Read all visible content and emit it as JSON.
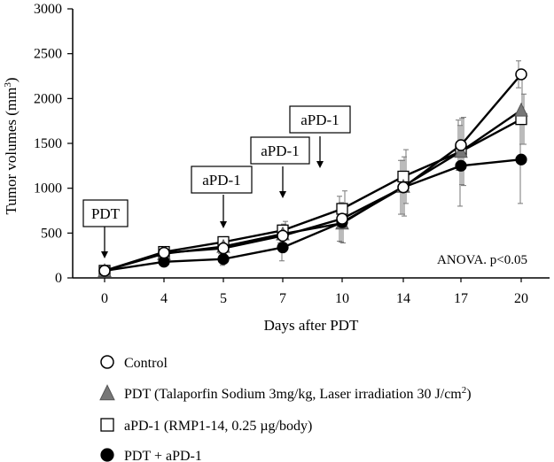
{
  "chart_data": {
    "type": "line",
    "x": [
      0,
      4,
      5,
      7,
      10,
      14,
      17,
      20
    ],
    "x_tick_labels": [
      "0",
      "4",
      "5",
      "7",
      "10",
      "14",
      "17",
      "20"
    ],
    "y_tick_labels": [
      "0",
      "500",
      "1000",
      "1500",
      "2000",
      "2500",
      "3000"
    ],
    "ylim": [
      0,
      3000
    ],
    "xlabel": "Days after PDT",
    "ylabel": "Tumor volumes (mm",
    "ylabel_sup": "3",
    "ylabel_close": ")",
    "series": [
      {
        "name": "Control",
        "marker": "circle-open",
        "values": [
          80,
          280,
          330,
          470,
          660,
          1010,
          1480,
          2270
        ],
        "errors": [
          30,
          40,
          60,
          80,
          250,
          300,
          280,
          150
        ]
      },
      {
        "name": "PDT (Talaporfin Sodium 3mg/kg, Laser irradiation 30 J/cm",
        "name_sup": "2",
        "name_close": ")",
        "marker": "triangle-filled",
        "values": [
          80,
          270,
          350,
          490,
          610,
          1020,
          1410,
          1870
        ],
        "errors": [
          30,
          40,
          70,
          110,
          220,
          330,
          370,
          380
        ]
      },
      {
        "name": "aPD-1  (RMP1-14, 0.25 µg/body)",
        "marker": "square-open",
        "values": [
          80,
          290,
          400,
          530,
          770,
          1130,
          1410,
          1770
        ],
        "errors": [
          30,
          40,
          60,
          100,
          200,
          300,
          380,
          280
        ]
      },
      {
        "name": "PDT + aPD-1",
        "marker": "circle-filled",
        "values": [
          80,
          180,
          210,
          340,
          620,
          1010,
          1250,
          1320
        ],
        "errors": [
          20,
          40,
          70,
          150,
          220,
          300,
          450,
          490
        ]
      }
    ],
    "annotations": [
      {
        "text": "PDT",
        "at_x": 0
      },
      {
        "text": "aPD-1",
        "at_x": 5
      },
      {
        "text": "aPD-1",
        "at_x": 7
      },
      {
        "text": "aPD-1",
        "at_x": 10,
        "offset_left": true
      }
    ],
    "stat_note": "ANOVA. p<0.05"
  }
}
